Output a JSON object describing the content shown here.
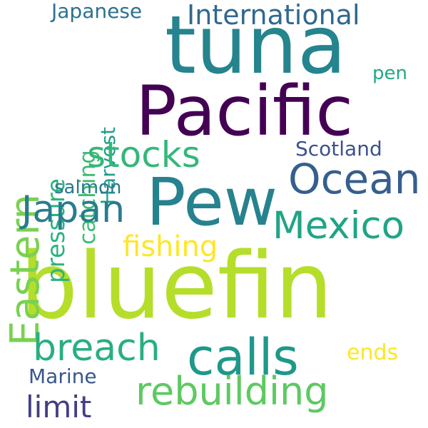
{
  "words": [
    {
      "id": "tuna",
      "text": "tuna",
      "color": "#25848e",
      "orientation": "horizontal"
    },
    {
      "id": "pacific",
      "text": "Pacific",
      "color": "#440154",
      "orientation": "horizontal"
    },
    {
      "id": "pew",
      "text": "Pew",
      "color": "#26828e",
      "orientation": "horizontal"
    },
    {
      "id": "bluefin",
      "text": "bluefin",
      "color": "#b5de2b",
      "orientation": "horizontal"
    },
    {
      "id": "international",
      "text": "International",
      "color": "#31688e",
      "orientation": "horizontal"
    },
    {
      "id": "japanese",
      "text": "Japanese",
      "color": "#2c728e",
      "orientation": "horizontal"
    },
    {
      "id": "eastern",
      "text": "Eastern",
      "color": "#7ad151",
      "orientation": "vertical"
    },
    {
      "id": "pressure",
      "text": "pressure",
      "color": "#2db27d",
      "orientation": "vertical"
    },
    {
      "id": "catching",
      "text": "catching",
      "color": "#3fbc73",
      "orientation": "vertical"
    },
    {
      "id": "harvest",
      "text": "Harvest",
      "color": "#1f9e89",
      "orientation": "vertical"
    },
    {
      "id": "stocks",
      "text": "stocks",
      "color": "#35b779",
      "orientation": "horizontal"
    },
    {
      "id": "ocean",
      "text": "Ocean",
      "color": "#355f8d",
      "orientation": "horizontal"
    },
    {
      "id": "pen",
      "text": "pen",
      "color": "#22a884",
      "orientation": "horizontal"
    },
    {
      "id": "scotland",
      "text": "Scotland",
      "color": "#3b528b",
      "orientation": "horizontal"
    },
    {
      "id": "salmon",
      "text": "salmon",
      "color": "#2a788e",
      "orientation": "horizontal"
    },
    {
      "id": "japan",
      "text": "Japan",
      "color": "#287c8e",
      "orientation": "horizontal"
    },
    {
      "id": "mexico",
      "text": "Mexico",
      "color": "#20a486",
      "orientation": "horizontal"
    },
    {
      "id": "fishing",
      "text": "fishing",
      "color": "#fde725",
      "orientation": "horizontal"
    },
    {
      "id": "breach",
      "text": "breach",
      "color": "#29af7f",
      "orientation": "horizontal"
    },
    {
      "id": "calls",
      "text": "calls",
      "color": "#1f988b",
      "orientation": "horizontal"
    },
    {
      "id": "ends",
      "text": "ends",
      "color": "#fde725",
      "orientation": "horizontal"
    },
    {
      "id": "marine",
      "text": "Marine",
      "color": "#39568c",
      "orientation": "horizontal"
    },
    {
      "id": "rebuilding",
      "text": "rebuilding",
      "color": "#5ec962",
      "orientation": "horizontal"
    },
    {
      "id": "limit",
      "text": "limit",
      "color": "#433e85",
      "orientation": "horizontal"
    }
  ]
}
